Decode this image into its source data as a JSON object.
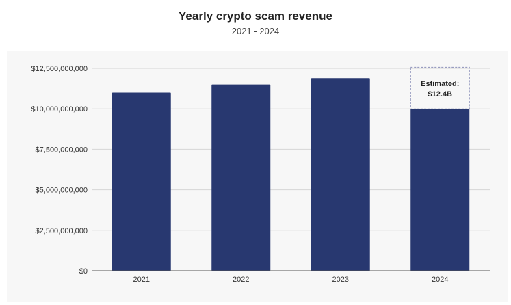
{
  "chart_data": {
    "type": "bar",
    "title": "Yearly crypto scam revenue",
    "subtitle": "2021 - 2024",
    "xlabel": "",
    "ylabel": "",
    "categories": [
      "2021",
      "2022",
      "2023",
      "2024"
    ],
    "values": [
      11000000000,
      11500000000,
      11900000000,
      10000000000
    ],
    "ylim": [
      0,
      12500000000
    ],
    "yticks": [
      0,
      2500000000,
      5000000000,
      7500000000,
      10000000000,
      12500000000
    ],
    "ytick_labels": [
      "$0",
      "$2,500,000,000",
      "$5,000,000,000",
      "$7,500,000,000",
      "$10,000,000,000",
      "$12,500,000,000"
    ],
    "grid": true,
    "bar_color": "#283870",
    "annotation": {
      "category": "2024",
      "estimated_value": 12400000000,
      "line1": "Estimated:",
      "line2": "$12.4B"
    }
  }
}
